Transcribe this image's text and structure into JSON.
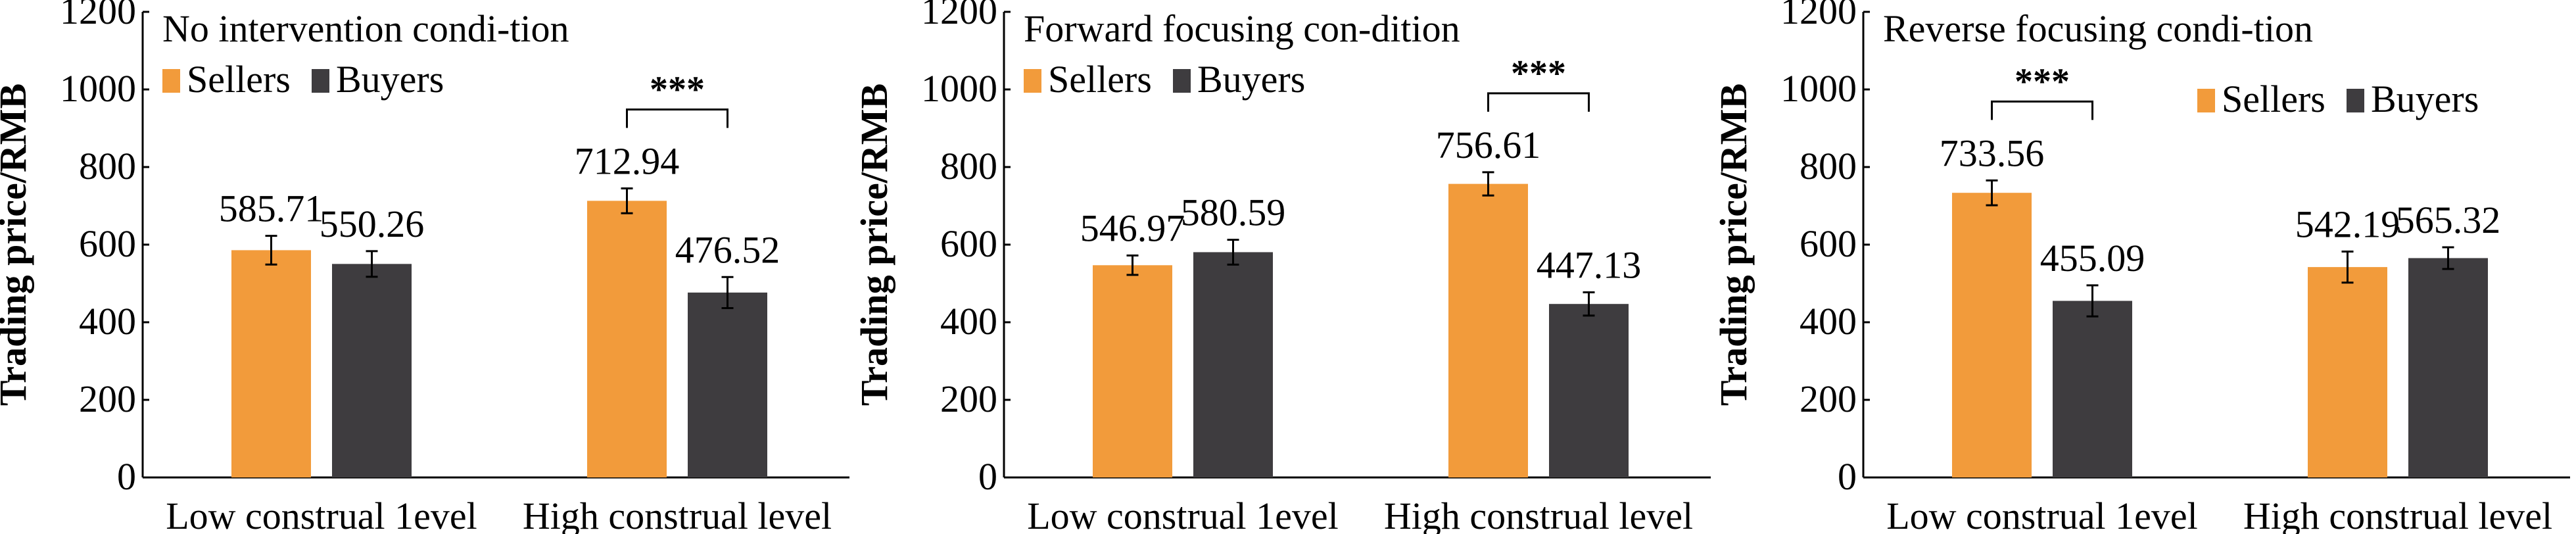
{
  "chart_data": [
    {
      "type": "bar",
      "title": "No intervention condi-tion",
      "ylabel": "Trading price/RMB",
      "xlabel": "",
      "ylim": [
        0,
        1200
      ],
      "yticks": [
        "0",
        "200",
        "400",
        "600",
        "800",
        "1000",
        "1200"
      ],
      "categories": [
        "Low construal 1evel",
        "High construal level"
      ],
      "legend": [
        "Sellers",
        "Buyers"
      ],
      "legend_position": "top-left",
      "series": [
        {
          "name": "Sellers",
          "color": "#f29b3b",
          "values": [
            585.71,
            712.94
          ],
          "labels": [
            "585.71",
            "712.94"
          ],
          "errors": [
            37,
            32
          ]
        },
        {
          "name": "Buyers",
          "color": "#3e3c3f",
          "values": [
            550.26,
            476.52
          ],
          "labels": [
            "550.26",
            "476.52"
          ],
          "errors": [
            33,
            40
          ]
        }
      ],
      "significance": {
        "category": 1,
        "label": "***"
      }
    },
    {
      "type": "bar",
      "title": "Forward focusing con-dition",
      "ylabel": "Trading price/RMB",
      "xlabel": "",
      "ylim": [
        0,
        1200
      ],
      "yticks": [
        "0",
        "200",
        "400",
        "600",
        "800",
        "1000",
        "1200"
      ],
      "categories": [
        "Low construal 1evel",
        "High construal level"
      ],
      "legend": [
        "Sellers",
        "Buyers"
      ],
      "legend_position": "top-left",
      "series": [
        {
          "name": "Sellers",
          "color": "#f29b3b",
          "values": [
            546.97,
            756.61
          ],
          "labels": [
            "546.97",
            "756.61"
          ],
          "errors": [
            25,
            30
          ]
        },
        {
          "name": "Buyers",
          "color": "#3e3c3f",
          "values": [
            580.59,
            447.13
          ],
          "labels": [
            "580.59",
            "447.13"
          ],
          "errors": [
            32,
            30
          ]
        }
      ],
      "significance": {
        "category": 1,
        "label": "***"
      }
    },
    {
      "type": "bar",
      "title": "Reverse focusing condi-tion",
      "ylabel": "Trading price/RMB",
      "xlabel": "",
      "ylim": [
        0,
        1200
      ],
      "yticks": [
        "0",
        "200",
        "400",
        "600",
        "800",
        "1000",
        "1200"
      ],
      "categories": [
        "Low construal 1evel",
        "High construal level"
      ],
      "legend": [
        "Sellers",
        "Buyers"
      ],
      "legend_position": "top-right",
      "series": [
        {
          "name": "Sellers",
          "color": "#f29b3b",
          "values": [
            733.56,
            542.19
          ],
          "labels": [
            "733.56",
            "542.19"
          ],
          "errors": [
            32,
            40
          ]
        },
        {
          "name": "Buyers",
          "color": "#3e3c3f",
          "values": [
            455.09,
            565.32
          ],
          "labels": [
            "455.09",
            "565.32"
          ],
          "errors": [
            40,
            28
          ]
        }
      ],
      "significance": {
        "category": 0,
        "label": "***"
      }
    }
  ]
}
